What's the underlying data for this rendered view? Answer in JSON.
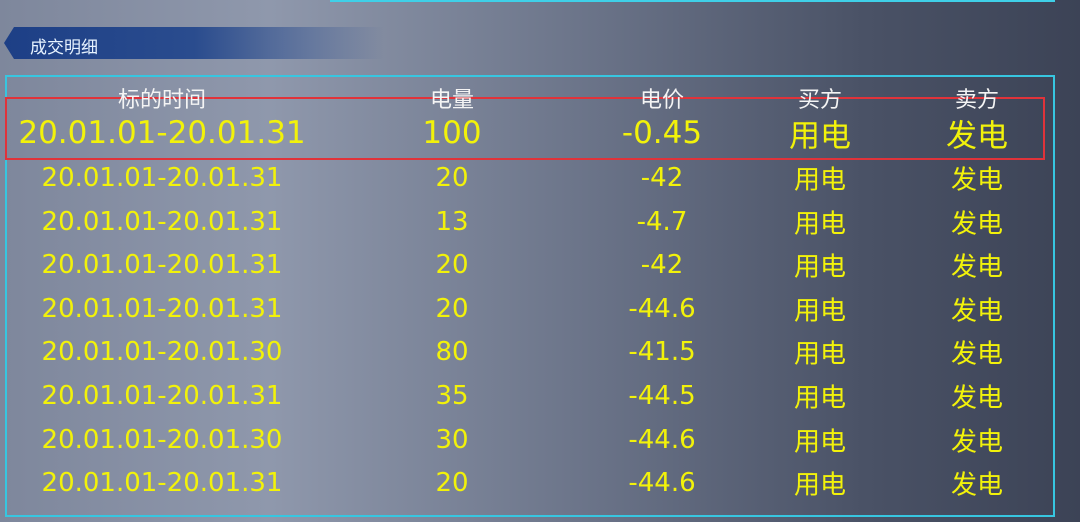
{
  "header": {
    "title": "成交明细"
  },
  "table": {
    "columns": [
      "标的时间",
      "电量",
      "电价",
      "买方",
      "卖方"
    ],
    "rows": [
      [
        "20.01.01-20.01.31",
        "100",
        "-0.45",
        "用电",
        "发电"
      ],
      [
        "20.01.01-20.01.31",
        "20",
        "-42",
        "用电",
        "发电"
      ],
      [
        "20.01.01-20.01.31",
        "13",
        "-4.7",
        "用电",
        "发电"
      ],
      [
        "20.01.01-20.01.31",
        "20",
        "-42",
        "用电",
        "发电"
      ],
      [
        "20.01.01-20.01.31",
        "20",
        "-44.6",
        "用电",
        "发电"
      ],
      [
        "20.01.01-20.01.30",
        "80",
        "-41.5",
        "用电",
        "发电"
      ],
      [
        "20.01.01-20.01.31",
        "35",
        "-44.5",
        "用电",
        "发电"
      ],
      [
        "20.01.01-20.01.30",
        "30",
        "-44.6",
        "用电",
        "发电"
      ],
      [
        "20.01.01-20.01.31",
        "20",
        "-44.6",
        "用电",
        "发电"
      ]
    ]
  }
}
